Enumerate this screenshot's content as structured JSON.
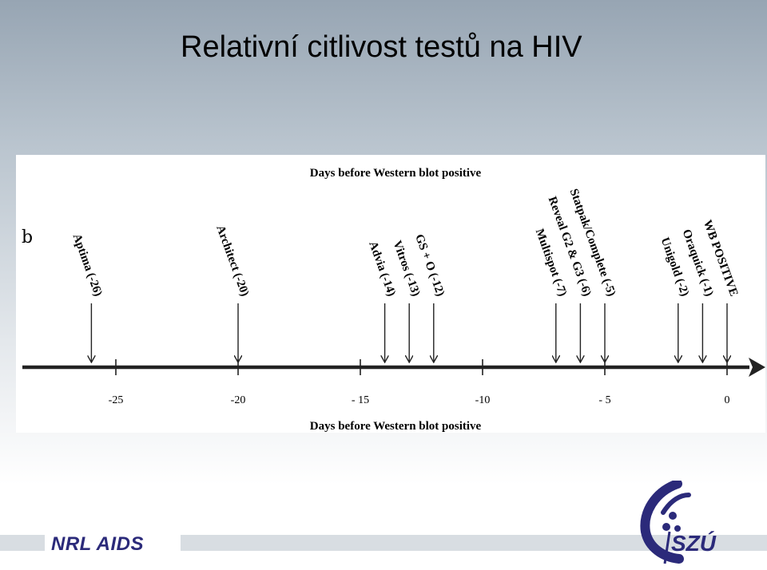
{
  "slide": {
    "title": "Relativní citlivost testů na HIV"
  },
  "chart_data": {
    "type": "timeline",
    "panel_label": "b",
    "title": "Days before Western blot positive",
    "xlabel": "Days before Western blot positive",
    "xlim": [
      -26,
      0
    ],
    "ticks": [
      {
        "value": -25,
        "label": "-25"
      },
      {
        "value": -20,
        "label": "-20"
      },
      {
        "value": -15,
        "label": "- 15"
      },
      {
        "value": -10,
        "label": "-10"
      },
      {
        "value": -5,
        "label": "- 5"
      },
      {
        "value": 0,
        "label": "0"
      }
    ],
    "markers": [
      {
        "value": -26,
        "label": "Aptima (-26)"
      },
      {
        "value": -20,
        "label": "Architect (-20)"
      },
      {
        "value": -14,
        "label": "Advia (-14)"
      },
      {
        "value": -13,
        "label": "Vitros (-13)"
      },
      {
        "value": -12,
        "label": "GS + O (-12)"
      },
      {
        "value": -7,
        "label": "Multispot (-7)"
      },
      {
        "value": -6,
        "label": "Reveal G2 & G3 (-6)"
      },
      {
        "value": -5,
        "label": "Statpak/Complete (-5)"
      },
      {
        "value": -2,
        "label": "Unigold (-2)"
      },
      {
        "value": -1,
        "label": "Oraquick (-1)"
      },
      {
        "value": 0,
        "label": "WB POSITIVE"
      }
    ]
  },
  "footer": {
    "left_logo_text": "NRL AIDS",
    "right_logo_text": "SZÚ"
  }
}
